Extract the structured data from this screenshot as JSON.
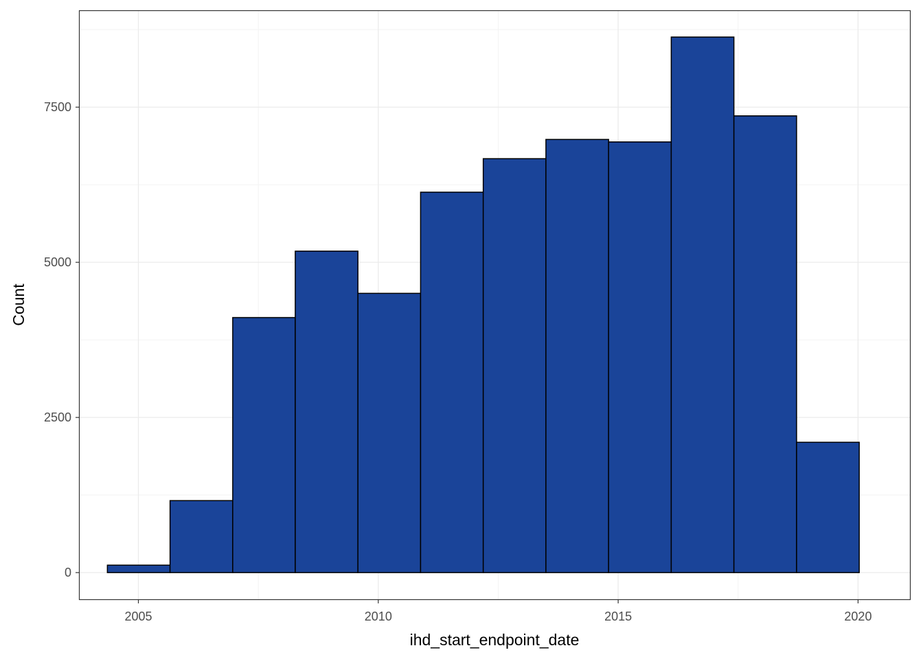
{
  "chart_data": {
    "type": "bar",
    "subtype": "histogram",
    "title": "",
    "xlabel": "ihd_start_endpoint_date",
    "ylabel": "Count",
    "xlim": [
      "2003-10-12",
      "2021-01-30"
    ],
    "ylim": [
      -430,
      9050
    ],
    "grid": true,
    "legend": "none",
    "x_ticks": [
      {
        "value": "2005-01-01",
        "label": "2005"
      },
      {
        "value": "2010-01-01",
        "label": "2010"
      },
      {
        "value": "2015-01-01",
        "label": "2015"
      },
      {
        "value": "2020-01-01",
        "label": "2020"
      }
    ],
    "y_ticks": [
      {
        "value": 0,
        "label": "0"
      },
      {
        "value": 2500,
        "label": "2500"
      },
      {
        "value": 5000,
        "label": "5000"
      },
      {
        "value": 7500,
        "label": "7500"
      }
    ],
    "bins": [
      {
        "start": "2004-05-10",
        "end": "2005-08-30",
        "count": 120
      },
      {
        "start": "2005-08-30",
        "end": "2006-12-20",
        "count": 1160
      },
      {
        "start": "2006-12-20",
        "end": "2008-04-09",
        "count": 4110
      },
      {
        "start": "2008-04-09",
        "end": "2009-07-30",
        "count": 5180
      },
      {
        "start": "2009-07-30",
        "end": "2010-11-19",
        "count": 4500
      },
      {
        "start": "2010-11-19",
        "end": "2012-03-10",
        "count": 6130
      },
      {
        "start": "2012-03-10",
        "end": "2013-06-30",
        "count": 6670
      },
      {
        "start": "2013-06-30",
        "end": "2014-10-20",
        "count": 6980
      },
      {
        "start": "2014-10-20",
        "end": "2016-02-09",
        "count": 6940
      },
      {
        "start": "2016-02-09",
        "end": "2017-05-31",
        "count": 8630
      },
      {
        "start": "2017-05-31",
        "end": "2018-09-20",
        "count": 7360
      },
      {
        "start": "2018-09-20",
        "end": "2020-01-10",
        "count": 2100
      }
    ],
    "colors": {
      "bar_fill": "#1A4499",
      "bar_outline": "#000000",
      "grid_major": "#EBEBEB",
      "grid_minor": "#F3F3F3",
      "panel_border": "#333333"
    }
  }
}
